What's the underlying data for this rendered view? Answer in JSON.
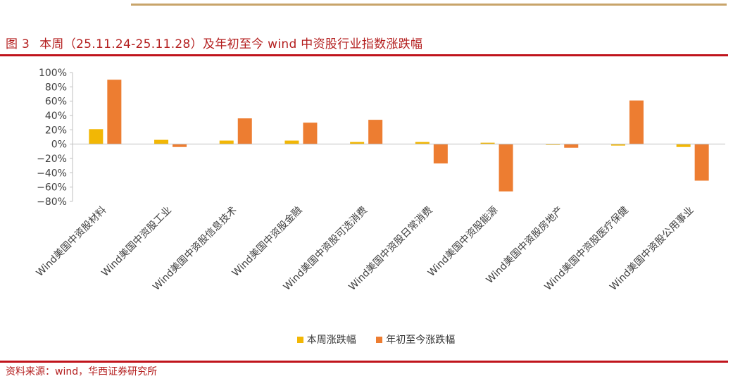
{
  "figure": {
    "number": "图 3",
    "title": "本周（25.11.24-25.11.28）及年初至今 wind 中资股行业指数涨跌幅"
  },
  "source": "资料来源：wind，华西证券研究所",
  "colors": {
    "weekly": "#f2b705",
    "ytd": "#ed7d31",
    "accent": "#c0141c",
    "gold_rule": "#c8a46a"
  },
  "chart_data": {
    "type": "bar",
    "categories": [
      "Wind美国中资股材料",
      "Wind美国中资股工业",
      "Wind美国中资股信息技术",
      "Wind美国中资股金融",
      "Wind美国中资股可选消费",
      "Wind美国中资股日常消费",
      "Wind美国中资股能源",
      "Wind美国中资股房地产",
      "Wind美国中资股医疗保健",
      "Wind美国中资股公用事业"
    ],
    "series": [
      {
        "name": "本周涨跌幅",
        "values": [
          21,
          6,
          5,
          5,
          3,
          3,
          2,
          -1,
          -2,
          -4
        ]
      },
      {
        "name": "年初至今涨跌幅",
        "values": [
          90,
          -4,
          36,
          30,
          34,
          -27,
          -66,
          -5,
          61,
          -51
        ]
      }
    ],
    "ylim": [
      -80,
      100
    ],
    "yticks": [
      "100%",
      "80%",
      "60%",
      "40%",
      "20%",
      "0%",
      "−20%",
      "−40%",
      "−60%",
      "−80%"
    ],
    "ytick_values": [
      100,
      80,
      60,
      40,
      20,
      0,
      -20,
      -40,
      -60,
      -80
    ],
    "grid": false,
    "legend_position": "bottom"
  }
}
